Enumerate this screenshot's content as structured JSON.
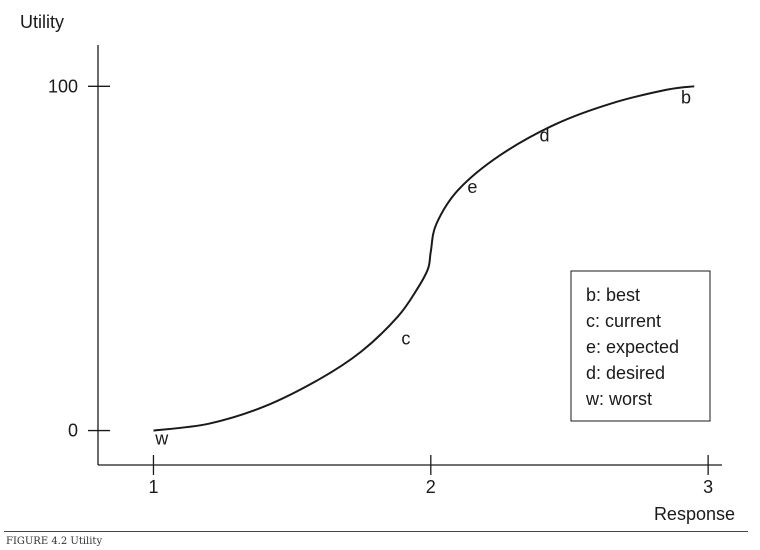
{
  "chart_data": {
    "type": "line",
    "ylabel": "Utility",
    "xlabel": "Response",
    "xlim": [
      0.8,
      3.05
    ],
    "ylim": [
      -10,
      112
    ],
    "x_ticks": [
      1,
      2,
      3
    ],
    "y_ticks": [
      0,
      100
    ],
    "series": [
      {
        "x": [
          1.0,
          1.2,
          1.4,
          1.6,
          1.75,
          1.88,
          1.95,
          1.99,
          2.0,
          2.02,
          2.1,
          2.25,
          2.45,
          2.65,
          2.85,
          2.95
        ],
        "y": [
          0,
          2,
          7,
          15,
          23,
          33,
          41,
          47,
          52,
          60,
          70,
          80,
          89,
          95,
          99,
          100
        ]
      }
    ],
    "point_labels": [
      {
        "text": "w",
        "x": 1.03,
        "y": -4
      },
      {
        "text": "c",
        "x": 1.91,
        "y": 25
      },
      {
        "text": "e",
        "x": 2.15,
        "y": 69
      },
      {
        "text": "d",
        "x": 2.41,
        "y": 84
      },
      {
        "text": "b",
        "x": 2.92,
        "y": 95
      }
    ],
    "legend_position": "lower-right",
    "legend": [
      "b: best",
      "c: current",
      "e: expected",
      "d: desired",
      "w: worst"
    ],
    "grid": false
  },
  "caption": "FIGURE 4.2 Utility"
}
